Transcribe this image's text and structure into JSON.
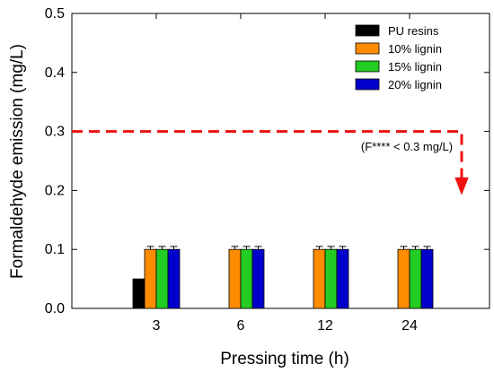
{
  "chart_data": {
    "type": "bar",
    "xlabel": "Pressing time (h)",
    "ylabel": "Formaldehyde emission (mg/L)",
    "categories": [
      "3",
      "6",
      "12",
      "24"
    ],
    "ylim": [
      0,
      0.5
    ],
    "yticks": [
      "0.0",
      "0.1",
      "0.2",
      "0.3",
      "0.4",
      "0.5"
    ],
    "grid": false,
    "legend_position": "top-right",
    "series": [
      {
        "name": "PU resins",
        "color": "#000000",
        "values": [
          0.05,
          null,
          null,
          null
        ],
        "errors": [
          0,
          null,
          null,
          null
        ]
      },
      {
        "name": "10% lignin",
        "color": "#FF8C00",
        "values": [
          0.1,
          0.1,
          0.1,
          0.1
        ],
        "errors": [
          0.005,
          0.005,
          0.005,
          0.005
        ]
      },
      {
        "name": "15% lignin",
        "color": "#22CC22",
        "values": [
          0.1,
          0.1,
          0.1,
          0.1
        ],
        "errors": [
          0.005,
          0.005,
          0.005,
          0.005
        ]
      },
      {
        "name": "20% lignin",
        "color": "#0000CC",
        "values": [
          0.1,
          0.1,
          0.1,
          0.1
        ],
        "errors": [
          0.005,
          0.005,
          0.005,
          0.005
        ]
      }
    ],
    "threshold": {
      "value": 0.3,
      "arrow_to": 0.2,
      "color": "#EE1111",
      "label": "(F**** < 0.3 mg/L)"
    }
  }
}
